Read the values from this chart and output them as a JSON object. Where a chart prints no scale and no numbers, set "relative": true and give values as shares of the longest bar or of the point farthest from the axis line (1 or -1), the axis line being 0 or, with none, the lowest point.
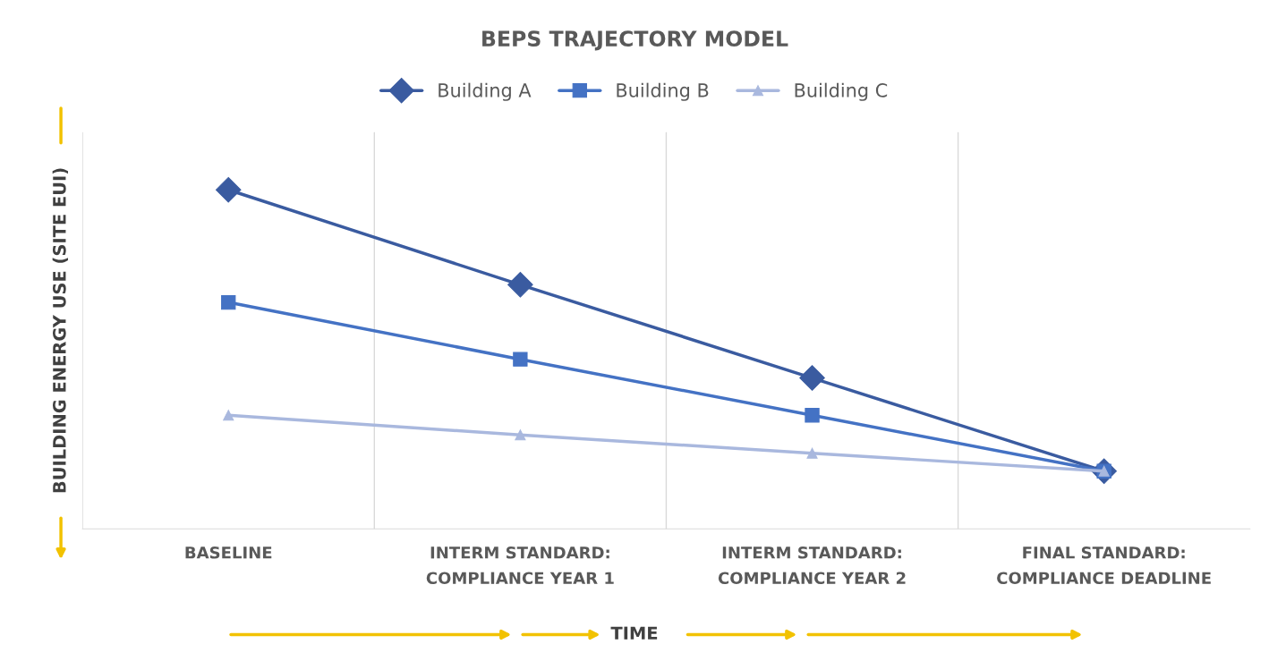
{
  "chart_data": {
    "type": "line",
    "title": "BEPS TRAJECTORY MODEL",
    "xlabel": "TIME",
    "ylabel": "BUILDING ENERGY USE (SITE EUI)",
    "categories": [
      "BASELINE",
      "INTERM STANDARD:\nCOMPLIANCE YEAR 1",
      "INTERM STANDARD:\nCOMPLIANCE YEAR 2",
      "FINAL STANDARD:\nCOMPLIANCE DEADLINE"
    ],
    "relative": true,
    "grid": "x",
    "legend": "top",
    "line_style": "solid",
    "series": [
      {
        "name": "Building A",
        "color": "#3a5ba0",
        "marker": "diamond",
        "values": [
          1,
          0.72,
          0.445,
          0.17
        ]
      },
      {
        "name": "Building B",
        "color": "#4472c4",
        "marker": "square",
        "values": [
          0.668,
          0.5,
          0.335,
          0.17
        ]
      },
      {
        "name": "Building C",
        "color": "#a9b8de",
        "marker": "triangle",
        "values": [
          0.335,
          0.277,
          0.223,
          0.17
        ]
      }
    ]
  }
}
